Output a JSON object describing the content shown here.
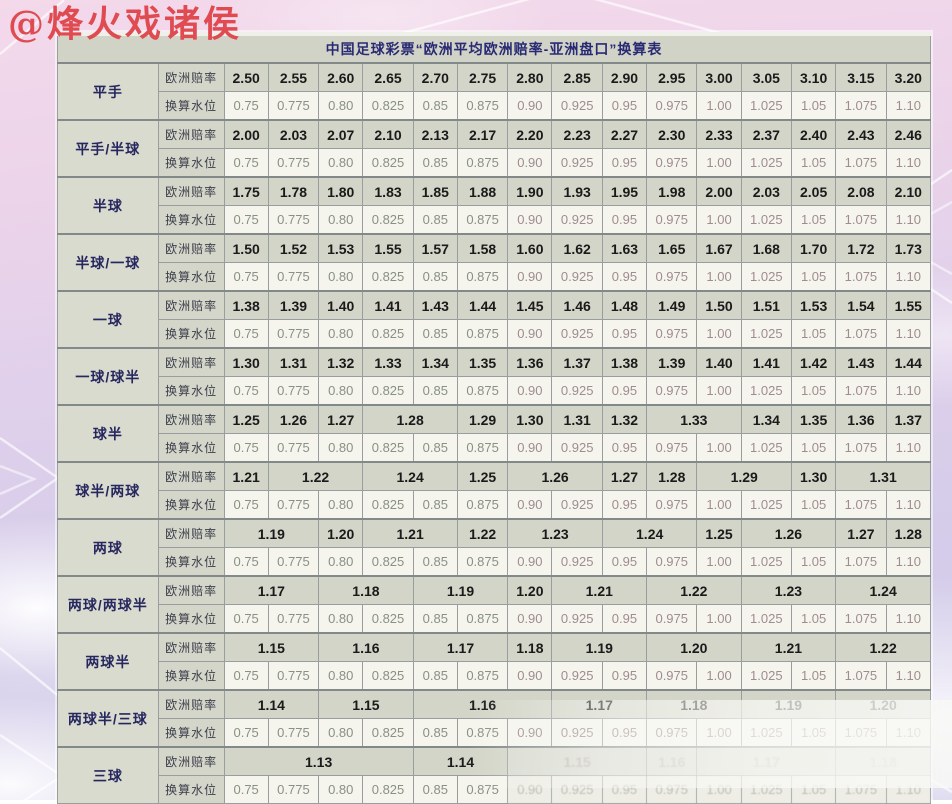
{
  "watermark": "@烽火戏诸侯",
  "table": {
    "title": "中国足球彩票“欧洲平均欧洲赔率-亚洲盘口”换算表",
    "odds_row_label": "欧洲赔率",
    "water_row_label": "换算水位",
    "water_values": [
      "0.75",
      "0.775",
      "0.80",
      "0.825",
      "0.85",
      "0.875",
      "0.90",
      "0.925",
      "0.95",
      "0.975",
      "1.00",
      "1.025",
      "1.05",
      "1.075",
      "1.10"
    ],
    "groups": [
      {
        "label": "平手",
        "odds": [
          {
            "v": "2.50"
          },
          {
            "v": "2.55"
          },
          {
            "v": "2.60"
          },
          {
            "v": "2.65"
          },
          {
            "v": "2.70"
          },
          {
            "v": "2.75"
          },
          {
            "v": "2.80"
          },
          {
            "v": "2.85"
          },
          {
            "v": "2.90"
          },
          {
            "v": "2.95"
          },
          {
            "v": "3.00"
          },
          {
            "v": "3.05"
          },
          {
            "v": "3.10"
          },
          {
            "v": "3.15"
          },
          {
            "v": "3.20"
          }
        ]
      },
      {
        "label": "平手/半球",
        "odds": [
          {
            "v": "2.00"
          },
          {
            "v": "2.03"
          },
          {
            "v": "2.07"
          },
          {
            "v": "2.10"
          },
          {
            "v": "2.13"
          },
          {
            "v": "2.17"
          },
          {
            "v": "2.20"
          },
          {
            "v": "2.23"
          },
          {
            "v": "2.27"
          },
          {
            "v": "2.30"
          },
          {
            "v": "2.33"
          },
          {
            "v": "2.37"
          },
          {
            "v": "2.40"
          },
          {
            "v": "2.43"
          },
          {
            "v": "2.46"
          }
        ]
      },
      {
        "label": "半球",
        "odds": [
          {
            "v": "1.75"
          },
          {
            "v": "1.78"
          },
          {
            "v": "1.80"
          },
          {
            "v": "1.83"
          },
          {
            "v": "1.85"
          },
          {
            "v": "1.88"
          },
          {
            "v": "1.90"
          },
          {
            "v": "1.93"
          },
          {
            "v": "1.95"
          },
          {
            "v": "1.98"
          },
          {
            "v": "2.00"
          },
          {
            "v": "2.03"
          },
          {
            "v": "2.05"
          },
          {
            "v": "2.08"
          },
          {
            "v": "2.10"
          }
        ]
      },
      {
        "label": "半球/一球",
        "odds": [
          {
            "v": "1.50"
          },
          {
            "v": "1.52"
          },
          {
            "v": "1.53"
          },
          {
            "v": "1.55"
          },
          {
            "v": "1.57"
          },
          {
            "v": "1.58"
          },
          {
            "v": "1.60"
          },
          {
            "v": "1.62"
          },
          {
            "v": "1.63"
          },
          {
            "v": "1.65"
          },
          {
            "v": "1.67"
          },
          {
            "v": "1.68"
          },
          {
            "v": "1.70"
          },
          {
            "v": "1.72"
          },
          {
            "v": "1.73"
          }
        ]
      },
      {
        "label": "一球",
        "odds": [
          {
            "v": "1.38"
          },
          {
            "v": "1.39"
          },
          {
            "v": "1.40"
          },
          {
            "v": "1.41"
          },
          {
            "v": "1.43"
          },
          {
            "v": "1.44"
          },
          {
            "v": "1.45"
          },
          {
            "v": "1.46"
          },
          {
            "v": "1.48"
          },
          {
            "v": "1.49"
          },
          {
            "v": "1.50"
          },
          {
            "v": "1.51"
          },
          {
            "v": "1.53"
          },
          {
            "v": "1.54"
          },
          {
            "v": "1.55"
          }
        ]
      },
      {
        "label": "一球/球半",
        "odds": [
          {
            "v": "1.30"
          },
          {
            "v": "1.31"
          },
          {
            "v": "1.32"
          },
          {
            "v": "1.33"
          },
          {
            "v": "1.34"
          },
          {
            "v": "1.35"
          },
          {
            "v": "1.36"
          },
          {
            "v": "1.37"
          },
          {
            "v": "1.38"
          },
          {
            "v": "1.39"
          },
          {
            "v": "1.40"
          },
          {
            "v": "1.41"
          },
          {
            "v": "1.42"
          },
          {
            "v": "1.43"
          },
          {
            "v": "1.44"
          }
        ]
      },
      {
        "label": "球半",
        "odds": [
          {
            "v": "1.25"
          },
          {
            "v": "1.26"
          },
          {
            "v": "1.27"
          },
          {
            "v": "1.28",
            "s": 2
          },
          {
            "v": "1.29"
          },
          {
            "v": "1.30"
          },
          {
            "v": "1.31"
          },
          {
            "v": "1.32"
          },
          {
            "v": "1.33",
            "s": 2
          },
          {
            "v": "1.34"
          },
          {
            "v": "1.35"
          },
          {
            "v": "1.36"
          },
          {
            "v": "1.37"
          }
        ]
      },
      {
        "label": "球半/两球",
        "odds": [
          {
            "v": "1.21"
          },
          {
            "v": "1.22",
            "s": 2
          },
          {
            "v": "1.24",
            "s": 2
          },
          {
            "v": "1.25"
          },
          {
            "v": "1.26",
            "s": 2
          },
          {
            "v": "1.27"
          },
          {
            "v": "1.28"
          },
          {
            "v": "1.29",
            "s": 2
          },
          {
            "v": "1.30"
          },
          {
            "v": "1.31",
            "s": 2
          }
        ]
      },
      {
        "label": "两球",
        "odds": [
          {
            "v": "1.19",
            "s": 2
          },
          {
            "v": "1.20"
          },
          {
            "v": "1.21",
            "s": 2
          },
          {
            "v": "1.22"
          },
          {
            "v": "1.23",
            "s": 2
          },
          {
            "v": "1.24",
            "s": 2
          },
          {
            "v": "1.25"
          },
          {
            "v": "1.26",
            "s": 2
          },
          {
            "v": "1.27"
          },
          {
            "v": "1.28"
          }
        ]
      },
      {
        "label": "两球/两球半",
        "odds": [
          {
            "v": "1.17",
            "s": 2
          },
          {
            "v": "1.18",
            "s": 2
          },
          {
            "v": "1.19",
            "s": 2
          },
          {
            "v": "1.20"
          },
          {
            "v": "1.21",
            "s": 2
          },
          {
            "v": "1.22",
            "s": 2
          },
          {
            "v": "1.23",
            "s": 2
          },
          {
            "v": "1.24",
            "s": 2
          }
        ]
      },
      {
        "label": "两球半",
        "odds": [
          {
            "v": "1.15",
            "s": 2
          },
          {
            "v": "1.16",
            "s": 2
          },
          {
            "v": "1.17",
            "s": 2
          },
          {
            "v": "1.18"
          },
          {
            "v": "1.19",
            "s": 2
          },
          {
            "v": "1.20",
            "s": 2
          },
          {
            "v": "1.21",
            "s": 2
          },
          {
            "v": "1.22",
            "s": 2
          }
        ]
      },
      {
        "label": "两球半/三球",
        "odds": [
          {
            "v": "1.14",
            "s": 2
          },
          {
            "v": "1.15",
            "s": 2
          },
          {
            "v": "1.16",
            "s": 3
          },
          {
            "v": "1.17",
            "s": 2
          },
          {
            "v": "1.18",
            "s": 2
          },
          {
            "v": "1.19",
            "s": 2
          },
          {
            "v": "1.20",
            "s": 2
          }
        ]
      },
      {
        "label": "三球",
        "odds": [
          {
            "v": "1.13",
            "s": 4
          },
          {
            "v": "1.14",
            "s": 2
          },
          {
            "v": "1.15",
            "s": 3,
            "f": true
          },
          {
            "v": "1.16",
            "s": 1,
            "f": true
          },
          {
            "v": "1.17",
            "s": 3,
            "f": true
          },
          {
            "v": "1.18",
            "s": 2,
            "f": true
          }
        ],
        "water_faded_from": 6
      }
    ],
    "colors": {
      "watermark_red": "#e04b51",
      "title_text": "#2a2a74",
      "label_text": "#27275f",
      "odds_text": "#1a1a1a",
      "water_text_left": "#899084",
      "water_text_right": "#9f8c8f",
      "cell_bg_gray": "#d3d5c8",
      "cell_bg_white": "#f5f5ee"
    }
  }
}
